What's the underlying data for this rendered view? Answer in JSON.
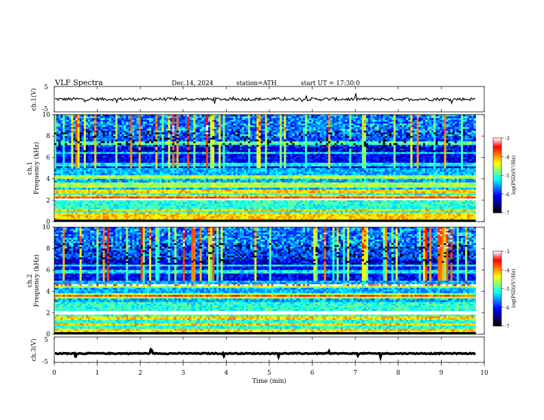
{
  "header": {
    "title": "VLF Spectra",
    "date": "Dec.14, 2024",
    "station": "station=ATH",
    "start": "start UT =  17:30:0"
  },
  "chart_data": {
    "type": "heatmap",
    "xlabel": "Time (min)",
    "xlim": [
      0,
      10
    ],
    "xticks": [
      "0",
      "1",
      "2",
      "3",
      "4",
      "5",
      "6",
      "7",
      "8",
      "9",
      "10"
    ],
    "panels": [
      {
        "id": "ch1_wave",
        "type": "line",
        "ylabel": "ch.1(V)",
        "ylim": [
          -5,
          5
        ],
        "yticks": [
          "5",
          "-5"
        ],
        "trace_level": 0,
        "trace_amplitude": 0.6,
        "data_end_min": 9.8
      },
      {
        "id": "ch1_spec",
        "type": "heatmap",
        "ylabel_line1": "ch.1",
        "ylabel_line2": "Frequency (kHz)",
        "ylim": [
          0,
          10
        ],
        "yticks": [
          "0",
          "2",
          "4",
          "6",
          "8",
          "10"
        ],
        "data_end_min": 9.8,
        "bands_khz": [
          0.3,
          0.7,
          1.1,
          2.1,
          2.4,
          2.8,
          3.3,
          3.6,
          4.2,
          5.3,
          6.4,
          7.3
        ],
        "strong_bands_khz": [
          2.2
        ],
        "colorbar": {
          "label": "log(PSD)(V²/Hz)",
          "ticks": [
            "-3",
            "-4",
            "-5",
            "-6",
            "-7"
          ],
          "range": [
            -7,
            -3
          ]
        }
      },
      {
        "id": "ch2_spec",
        "type": "heatmap",
        "ylabel_line1": "ch.2",
        "ylabel_line2": "Frequency (kHz)",
        "ylim": [
          0,
          10
        ],
        "yticks": [
          "0",
          "2",
          "4",
          "6",
          "8",
          "10"
        ],
        "data_end_min": 9.8,
        "bands_khz": [
          0.3,
          0.9,
          1.5,
          2.0,
          2.1,
          3.5,
          3.7,
          4.4,
          4.6,
          5.8,
          6.4
        ],
        "strong_bands_khz": [
          2.0,
          4.6
        ],
        "colorbar": {
          "label": "log(PSD)(V²/Hz)",
          "ticks": [
            "-3",
            "-4",
            "-5",
            "-6",
            "-7"
          ],
          "range": [
            -7,
            -3
          ]
        }
      },
      {
        "id": "ch3_wave",
        "type": "line",
        "ylabel": "ch.3(V)",
        "ylim": [
          -5,
          5
        ],
        "yticks": [
          "5",
          "-5"
        ],
        "trace_level": -1.5,
        "trace_amplitude": 0.2,
        "data_end_min": 9.8
      }
    ],
    "colormap": [
      "#000000",
      "#00007f",
      "#0000ff",
      "#007fff",
      "#00ffff",
      "#7fff7f",
      "#ffff00",
      "#ff7f00",
      "#ff0000",
      "#ffffff"
    ]
  }
}
